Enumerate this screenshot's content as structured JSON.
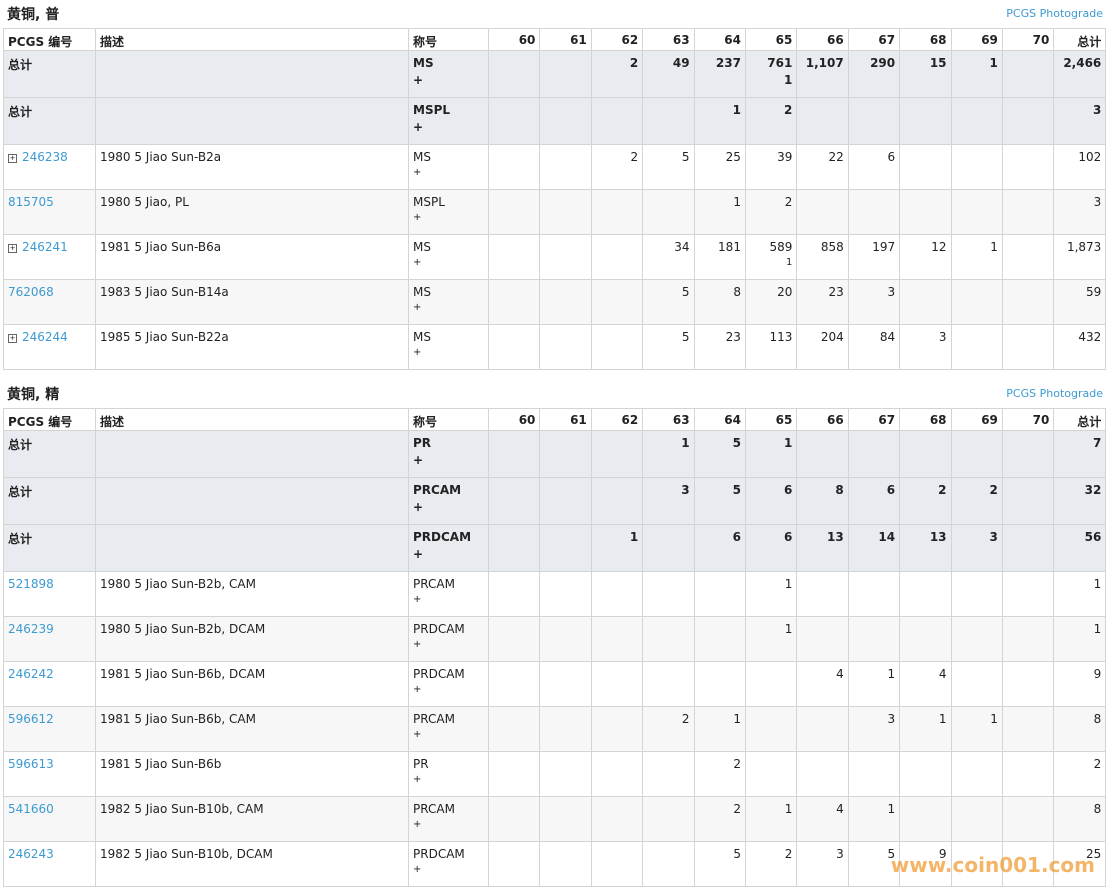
{
  "sections": [
    {
      "title": "黄铜, 普",
      "link": "PCGS Photograde",
      "headers": [
        "PCGS 编号",
        "描述",
        "称号",
        "60",
        "61",
        "62",
        "63",
        "64",
        "65",
        "66",
        "67",
        "68",
        "69",
        "70",
        "总计"
      ],
      "rows": [
        {
          "total": true,
          "id": "总计",
          "designation": "MS",
          "plus": "+",
          "cells": [
            null,
            null,
            "2",
            "49",
            "237",
            "761",
            "1,107",
            "290",
            "15",
            "1",
            null,
            "2,466"
          ],
          "plus_cells": {
            "5": "1"
          }
        },
        {
          "total": true,
          "id": "总计",
          "designation": "MSPL",
          "plus": "+",
          "cells": [
            null,
            null,
            null,
            null,
            "1",
            "2",
            null,
            null,
            null,
            null,
            null,
            "3"
          ]
        },
        {
          "expandable": true,
          "id": "246238",
          "desc": "1980 5 Jiao Sun-B2a",
          "designation": "MS",
          "plus": "+",
          "cells": [
            null,
            null,
            "2",
            "5",
            "25",
            "39",
            "22",
            "6",
            null,
            null,
            null,
            "102"
          ]
        },
        {
          "id": "815705",
          "desc": "1980 5 Jiao, PL",
          "designation": "MSPL",
          "plus": "+",
          "cells": [
            null,
            null,
            null,
            null,
            "1",
            "2",
            null,
            null,
            null,
            null,
            null,
            "3"
          ]
        },
        {
          "expandable": true,
          "id": "246241",
          "desc": "1981 5 Jiao Sun-B6a",
          "designation": "MS",
          "plus": "+",
          "cells": [
            null,
            null,
            null,
            "34",
            "181",
            "589",
            "858",
            "197",
            "12",
            "1",
            null,
            "1,873"
          ],
          "plus_cells": {
            "5": "1"
          }
        },
        {
          "id": "762068",
          "desc": "1983 5 Jiao Sun-B14a",
          "designation": "MS",
          "plus": "+",
          "cells": [
            null,
            null,
            null,
            "5",
            "8",
            "20",
            "23",
            "3",
            null,
            null,
            null,
            "59"
          ]
        },
        {
          "expandable": true,
          "id": "246244",
          "desc": "1985 5 Jiao Sun-B22a",
          "designation": "MS",
          "plus": "+",
          "cells": [
            null,
            null,
            null,
            "5",
            "23",
            "113",
            "204",
            "84",
            "3",
            null,
            null,
            "432"
          ]
        }
      ]
    },
    {
      "title": "黄铜, 精",
      "link": "PCGS Photograde",
      "headers": [
        "PCGS 编号",
        "描述",
        "称号",
        "60",
        "61",
        "62",
        "63",
        "64",
        "65",
        "66",
        "67",
        "68",
        "69",
        "70",
        "总计"
      ],
      "rows": [
        {
          "total": true,
          "id": "总计",
          "designation": "PR",
          "plus": "+",
          "cells": [
            null,
            null,
            null,
            "1",
            "5",
            "1",
            null,
            null,
            null,
            null,
            null,
            "7"
          ]
        },
        {
          "total": true,
          "id": "总计",
          "designation": "PRCAM",
          "plus": "+",
          "cells": [
            null,
            null,
            null,
            "3",
            "5",
            "6",
            "8",
            "6",
            "2",
            "2",
            null,
            "32"
          ]
        },
        {
          "total": true,
          "id": "总计",
          "designation": "PRDCAM",
          "plus": "+",
          "cells": [
            null,
            null,
            "1",
            null,
            "6",
            "6",
            "13",
            "14",
            "13",
            "3",
            null,
            "56"
          ]
        },
        {
          "id": "521898",
          "desc": "1980 5 Jiao Sun-B2b, CAM",
          "designation": "PRCAM",
          "plus": "+",
          "cells": [
            null,
            null,
            null,
            null,
            null,
            "1",
            null,
            null,
            null,
            null,
            null,
            "1"
          ]
        },
        {
          "id": "246239",
          "desc": "1980 5 Jiao Sun-B2b, DCAM",
          "designation": "PRDCAM",
          "plus": "+",
          "cells": [
            null,
            null,
            null,
            null,
            null,
            "1",
            null,
            null,
            null,
            null,
            null,
            "1"
          ]
        },
        {
          "id": "246242",
          "desc": "1981 5 Jiao Sun-B6b, DCAM",
          "designation": "PRDCAM",
          "plus": "+",
          "cells": [
            null,
            null,
            null,
            null,
            null,
            null,
            "4",
            "1",
            "4",
            null,
            null,
            "9"
          ]
        },
        {
          "id": "596612",
          "desc": "1981 5 Jiao Sun-B6b, CAM",
          "designation": "PRCAM",
          "plus": "+",
          "cells": [
            null,
            null,
            null,
            "2",
            "1",
            null,
            null,
            "3",
            "1",
            "1",
            null,
            "8"
          ]
        },
        {
          "id": "596613",
          "desc": "1981 5 Jiao Sun-B6b",
          "designation": "PR",
          "plus": "+",
          "cells": [
            null,
            null,
            null,
            null,
            "2",
            null,
            null,
            null,
            null,
            null,
            null,
            "2"
          ]
        },
        {
          "id": "541660",
          "desc": "1982 5 Jiao Sun-B10b, CAM",
          "designation": "PRCAM",
          "plus": "+",
          "cells": [
            null,
            null,
            null,
            null,
            "2",
            "1",
            "4",
            "1",
            null,
            null,
            null,
            "8"
          ]
        },
        {
          "id": "246243",
          "desc": "1982 5 Jiao Sun-B10b, DCAM",
          "designation": "PRDCAM",
          "plus": "+",
          "cells": [
            null,
            null,
            null,
            null,
            "5",
            "2",
            "3",
            "5",
            "9",
            null,
            null,
            "25"
          ]
        }
      ]
    }
  ],
  "watermark": "www.coin001.com"
}
